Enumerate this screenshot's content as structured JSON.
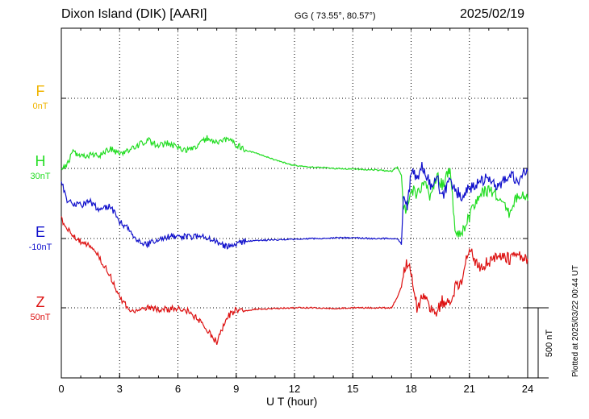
{
  "header": {
    "station": "Dixon Island (DIK)  [AARI]",
    "coords": "GG ( 73.55°,  80.57°)",
    "date": "2025/02/19"
  },
  "footer": {
    "xlabel": "U T (hour)",
    "plotted": "Plotted at 2025/03/22 00:44 UT",
    "scale": "500 nT"
  },
  "chart_data": {
    "type": "line",
    "title": "Dixon Island (DIK)  [AARI]",
    "xlabel": "U T (hour)",
    "ylabel": "",
    "xlim": [
      0,
      24
    ],
    "xticks": [
      0,
      3,
      6,
      9,
      12,
      15,
      18,
      21,
      24
    ],
    "grid": true,
    "scale_bar_nT": 500,
    "channels": [
      {
        "name": "F",
        "baseline": "0nT",
        "color": "#f0b400"
      },
      {
        "name": "H",
        "baseline": "30nT",
        "color": "#22dd22"
      },
      {
        "name": "E",
        "baseline": "-10nT",
        "color": "#1111cc"
      },
      {
        "name": "Z",
        "baseline": "50nT",
        "color": "#dd1111"
      }
    ],
    "series": [
      {
        "name": "H",
        "color": "#22dd22",
        "x": [
          0,
          0.3,
          0.6,
          1.0,
          1.5,
          2.0,
          2.5,
          3.0,
          3.5,
          4.0,
          4.5,
          5.0,
          5.5,
          6.0,
          6.5,
          7.0,
          7.5,
          8.0,
          8.5,
          9.0,
          9.5,
          10,
          11,
          12,
          13,
          14,
          15,
          16,
          17,
          17.3,
          17.5,
          17.6,
          17.8,
          18.0,
          18.3,
          18.6,
          19.0,
          19.3,
          19.6,
          20.0,
          20.3,
          20.6,
          21.0,
          21.5,
          22.0,
          22.5,
          23.0,
          23.5,
          24.0
        ],
        "y": [
          -20,
          30,
          120,
          80,
          100,
          90,
          140,
          110,
          130,
          170,
          200,
          160,
          180,
          150,
          130,
          160,
          220,
          190,
          210,
          170,
          130,
          110,
          60,
          20,
          10,
          0,
          -5,
          -10,
          -20,
          10,
          -50,
          -320,
          -250,
          -140,
          -200,
          -100,
          -200,
          -60,
          -120,
          0,
          -500,
          -450,
          -350,
          -180,
          -150,
          -200,
          -320,
          -180,
          -230
        ]
      },
      {
        "name": "E",
        "color": "#1111cc",
        "x": [
          0,
          0.3,
          0.6,
          1.0,
          1.5,
          2.0,
          2.5,
          3.0,
          3.5,
          4.0,
          4.5,
          5.0,
          5.5,
          6.0,
          6.5,
          7.0,
          7.5,
          8.0,
          8.5,
          9.0,
          9.5,
          10,
          11,
          12,
          13,
          14,
          15,
          16,
          17,
          17.3,
          17.5,
          17.6,
          17.8,
          18.0,
          18.3,
          18.6,
          19.0,
          19.3,
          19.6,
          20.0,
          20.3,
          20.6,
          21.0,
          21.5,
          22.0,
          22.5,
          23.0,
          23.5,
          24.0
        ],
        "y": [
          420,
          260,
          250,
          240,
          260,
          200,
          240,
          120,
          60,
          -20,
          -40,
          -10,
          10,
          20,
          10,
          20,
          10,
          -20,
          -60,
          -40,
          -20,
          -15,
          -10,
          -5,
          0,
          5,
          5,
          0,
          0,
          0,
          -40,
          280,
          200,
          480,
          420,
          520,
          380,
          450,
          300,
          420,
          340,
          300,
          350,
          400,
          430,
          360,
          450,
          420,
          480
        ]
      },
      {
        "name": "Z",
        "color": "#dd1111",
        "x": [
          0,
          0.3,
          0.6,
          1.0,
          1.5,
          2.0,
          2.5,
          3.0,
          3.5,
          4.0,
          4.5,
          5.0,
          5.5,
          6.0,
          6.5,
          7.0,
          7.5,
          8.0,
          8.5,
          9.0,
          9.5,
          10,
          11,
          12,
          13,
          14,
          15,
          16,
          17,
          17.3,
          17.5,
          17.6,
          17.8,
          18.0,
          18.3,
          18.6,
          19.0,
          19.3,
          19.6,
          20.0,
          20.3,
          20.6,
          21.0,
          21.5,
          22.0,
          22.5,
          23.0,
          23.5,
          24.0
        ],
        "y": [
          630,
          560,
          520,
          470,
          440,
          350,
          230,
          80,
          -20,
          -30,
          0,
          -10,
          -10,
          0,
          -20,
          -80,
          -150,
          -250,
          -70,
          -10,
          -20,
          -10,
          -5,
          0,
          0,
          -5,
          0,
          0,
          0,
          80,
          150,
          230,
          330,
          230,
          0,
          80,
          0,
          -50,
          50,
          20,
          150,
          200,
          420,
          280,
          330,
          360,
          350,
          370,
          350
        ]
      }
    ]
  }
}
